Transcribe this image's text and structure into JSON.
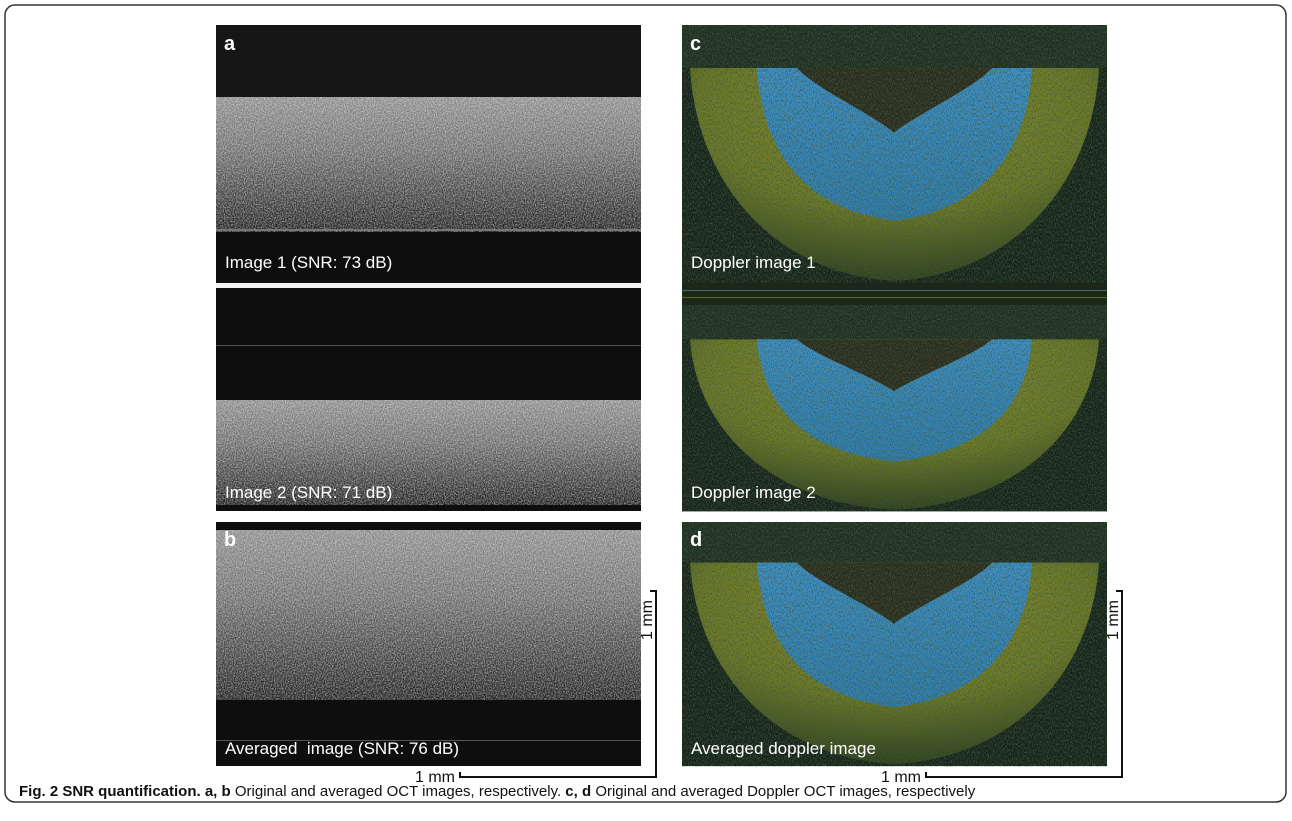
{
  "panels": [
    {
      "label": "a",
      "images": [
        "Image 1 (SNR: 73 dB)",
        "Image 2 (SNR: 71 dB)"
      ]
    },
    {
      "label": "b",
      "images": [
        "Averaged  image (SNR: 76 dB)"
      ]
    },
    {
      "label": "c",
      "images": [
        "Doppler image 1",
        "Doppler image 2"
      ]
    },
    {
      "label": "d",
      "images": [
        "Averaged doppler image"
      ]
    }
  ],
  "scale_bar": {
    "horizontal": "1 mm",
    "vertical": "1 mm"
  },
  "caption": {
    "title": "Fig. 2 SNR quantification.",
    "parts": [
      {
        "panels": "a, b",
        "text": "Original and averaged OCT images, respectively."
      },
      {
        "panels": "c, d",
        "text": "Original and averaged Doppler OCT images, respectively"
      }
    ]
  }
}
